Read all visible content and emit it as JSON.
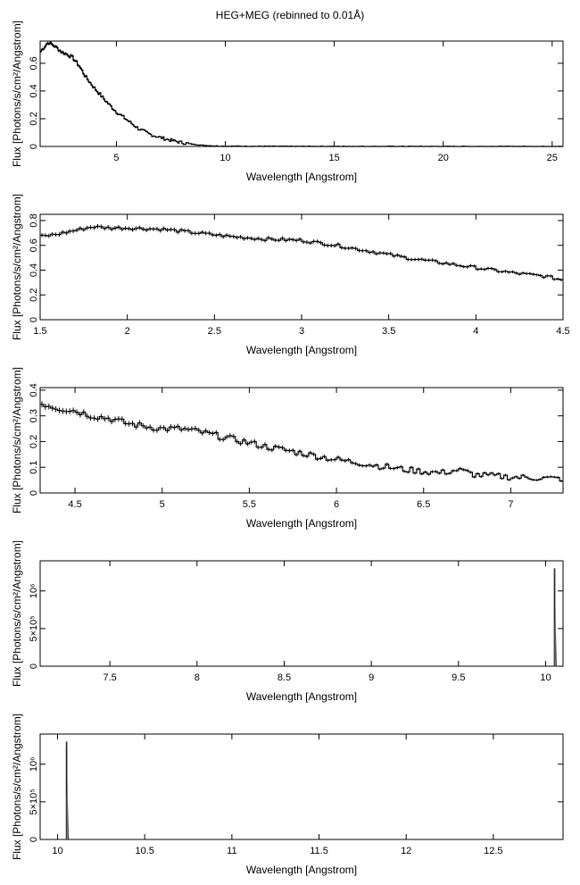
{
  "page": {
    "title": "HEG+MEG (rebinned to 0.01Å)"
  },
  "chart_data": [
    {
      "type": "line",
      "xlabel": "Wavelength [Angstrom]",
      "ylabel": "Flux [Photons/s/cm²/Angstrom]",
      "xlim": [
        1.5,
        25.5
      ],
      "ylim": [
        0,
        0.76
      ],
      "xticks": [
        5,
        10,
        15,
        20,
        25
      ],
      "yticks": [
        0,
        0.2,
        0.4,
        0.6
      ],
      "x": [
        1.5,
        1.6,
        1.7,
        1.8,
        1.9,
        2.0,
        2.2,
        2.5,
        2.8,
        3.0,
        3.3,
        3.6,
        4.0,
        4.5,
        5.0,
        5.5,
        6.0,
        6.5,
        7.0,
        7.5,
        8.0,
        8.5,
        9.0,
        9.5,
        10,
        12,
        15,
        20,
        25.5
      ],
      "series": [
        {
          "values": [
            0.68,
            0.7,
            0.72,
            0.74,
            0.75,
            0.74,
            0.72,
            0.68,
            0.66,
            0.64,
            0.58,
            0.5,
            0.42,
            0.33,
            0.25,
            0.19,
            0.13,
            0.09,
            0.065,
            0.045,
            0.028,
            0.016,
            0.008,
            0.004,
            0.002,
            0.001,
            0.0005,
            0.0002,
            0.0001
          ]
        }
      ]
    },
    {
      "type": "line",
      "xlabel": "Wavelength [Angstrom]",
      "ylabel": "Flux [Photons/s/cm²/Angstrom]",
      "xlim": [
        1.5,
        4.5
      ],
      "ylim": [
        0,
        0.85
      ],
      "xticks": [
        "1.5",
        "2",
        "2.5",
        "3",
        "3.5",
        "4",
        "4.5"
      ],
      "yticks": [
        "0",
        "0.2",
        "0.4",
        "0.6",
        "0.8"
      ],
      "x": [
        1.5,
        1.6,
        1.7,
        1.8,
        1.9,
        2.0,
        2.2,
        2.4,
        2.6,
        2.8,
        3.0,
        3.2,
        3.4,
        3.6,
        3.8,
        4.0,
        4.2,
        4.4,
        4.5
      ],
      "series": [
        {
          "values": [
            0.67,
            0.69,
            0.72,
            0.75,
            0.74,
            0.74,
            0.73,
            0.7,
            0.67,
            0.65,
            0.64,
            0.6,
            0.55,
            0.5,
            0.46,
            0.42,
            0.38,
            0.35,
            0.32
          ]
        }
      ]
    },
    {
      "type": "line",
      "xlabel": "Wavelength [Angstrom]",
      "ylabel": "Flux [Photons/s/cm²/Angstrom]",
      "xlim": [
        4.3,
        7.3
      ],
      "ylim": [
        0,
        0.41
      ],
      "xticks": [
        "4.5",
        "5",
        "5.5",
        "6",
        "6.5",
        "7"
      ],
      "yticks": [
        "0",
        "0.1",
        "0.2",
        "0.3",
        "0.4"
      ],
      "x": [
        4.3,
        4.4,
        4.5,
        4.6,
        4.7,
        4.8,
        4.9,
        5.0,
        5.1,
        5.2,
        5.4,
        5.6,
        5.8,
        6.0,
        6.2,
        6.4,
        6.6,
        6.7,
        6.8,
        7.0,
        7.3
      ],
      "series": [
        {
          "values": [
            0.35,
            0.33,
            0.32,
            0.3,
            0.29,
            0.27,
            0.26,
            0.25,
            0.25,
            0.24,
            0.21,
            0.18,
            0.155,
            0.13,
            0.11,
            0.09,
            0.078,
            0.09,
            0.07,
            0.062,
            0.055
          ]
        }
      ]
    },
    {
      "type": "line",
      "xlabel": "Wavelength [Angstrom]",
      "ylabel": "Flux [Photons/s/cm²/Angstrom]",
      "xlim": [
        7.1,
        10.1
      ],
      "ylim": [
        0,
        1400000
      ],
      "xticks": [
        "7.5",
        "8",
        "8.5",
        "9",
        "9.5",
        "10"
      ],
      "yticks": [
        "0",
        "5×10⁵",
        "10⁶"
      ],
      "x": [
        7.1,
        10.05,
        10.05,
        10.06,
        10.1
      ],
      "series": [
        {
          "values": [
            0,
            0,
            1300000,
            0,
            0
          ]
        }
      ]
    },
    {
      "type": "line",
      "xlabel": "Wavelength [Angstrom]",
      "ylabel": "Flux [Photons/s/cm²/Angstrom]",
      "xlim": [
        9.9,
        12.9
      ],
      "ylim": [
        0,
        1400000
      ],
      "xticks": [
        "10",
        "10.5",
        "11",
        "11.5",
        "12",
        "12.5"
      ],
      "yticks": [
        "0",
        "5×10⁵",
        "10⁶"
      ],
      "x": [
        9.9,
        10.05,
        10.05,
        10.06,
        12.9
      ],
      "series": [
        {
          "values": [
            0,
            0,
            1300000,
            0,
            0
          ]
        }
      ]
    }
  ]
}
